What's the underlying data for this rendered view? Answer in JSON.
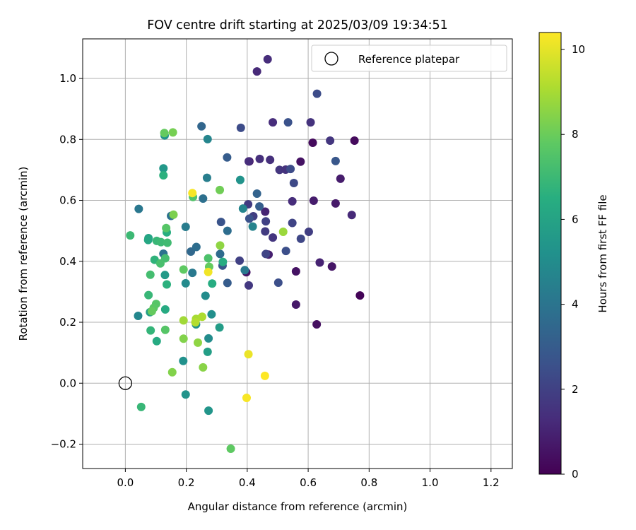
{
  "chart_data": {
    "type": "scatter",
    "title": "FOV centre drift starting at 2025/03/09 19:34:51",
    "xlabel": "Angular distance from reference (arcmin)",
    "ylabel": "Rotation from reference (arcmin)",
    "xlim": [
      -0.14,
      1.27
    ],
    "ylim": [
      -0.28,
      1.13
    ],
    "xticks": [
      0.0,
      0.2,
      0.4,
      0.6,
      0.8,
      1.0,
      1.2
    ],
    "xtick_labels": [
      "0.0",
      "0.2",
      "0.4",
      "0.6",
      "0.8",
      "1.0",
      "1.2"
    ],
    "yticks": [
      -0.2,
      0.0,
      0.2,
      0.4,
      0.6,
      0.8,
      1.0
    ],
    "ytick_labels": [
      "−0.2",
      "0.0",
      "0.2",
      "0.4",
      "0.6",
      "0.8",
      "1.0"
    ],
    "grid": true,
    "legend": {
      "location": "upper-right",
      "entries": [
        "Reference platepar"
      ]
    },
    "reference_point": {
      "label": "Reference platepar",
      "x": 0.0,
      "y": 0.0
    },
    "colorbar": {
      "label": "Hours from first FF file",
      "colormap": "viridis",
      "range": [
        0,
        10.4
      ],
      "ticks": [
        0,
        2,
        4,
        6,
        8,
        10
      ],
      "tick_labels": [
        "0",
        "2",
        "4",
        "6",
        "8",
        "10"
      ]
    },
    "points": [
      [
        0.615,
        0.789,
        0.3
      ],
      [
        0.752,
        0.796,
        0.3
      ],
      [
        0.77,
        0.288,
        0.1
      ],
      [
        0.628,
        0.193,
        0.4
      ],
      [
        0.678,
        0.383,
        0.6
      ],
      [
        0.56,
        0.367,
        0.5
      ],
      [
        0.56,
        0.258,
        0.7
      ],
      [
        0.407,
        0.728,
        0.4
      ],
      [
        0.575,
        0.727,
        0.5
      ],
      [
        0.397,
        0.364,
        0.6
      ],
      [
        0.69,
        0.59,
        0.7
      ],
      [
        0.706,
        0.671,
        0.8
      ],
      [
        0.618,
        0.599,
        0.8
      ],
      [
        0.47,
        0.422,
        0.9
      ],
      [
        0.638,
        0.396,
        1.0
      ],
      [
        0.459,
        0.563,
        1.0
      ],
      [
        0.432,
        1.023,
        1.2
      ],
      [
        0.467,
        1.063,
        1.3
      ],
      [
        0.484,
        0.856,
        1.3
      ],
      [
        0.475,
        0.733,
        1.4
      ],
      [
        0.405,
        0.728,
        1.3
      ],
      [
        0.441,
        0.736,
        1.4
      ],
      [
        0.743,
        0.552,
        1.2
      ],
      [
        0.548,
        0.597,
        1.3
      ],
      [
        0.608,
        0.856,
        1.5
      ],
      [
        0.672,
        0.796,
        1.6
      ],
      [
        0.506,
        0.7,
        1.6
      ],
      [
        0.526,
        0.701,
        1.5
      ],
      [
        0.405,
        0.321,
        1.7
      ],
      [
        0.484,
        0.478,
        1.6
      ],
      [
        0.459,
        0.498,
        1.8
      ],
      [
        0.403,
        0.587,
        1.8
      ],
      [
        0.42,
        0.548,
        1.9
      ],
      [
        0.375,
        0.402,
        2.0
      ],
      [
        0.461,
        0.531,
        2.0
      ],
      [
        0.548,
        0.526,
        2.1
      ],
      [
        0.602,
        0.497,
        1.9
      ],
      [
        0.461,
        0.424,
        2.1
      ],
      [
        0.576,
        0.474,
        2.2
      ],
      [
        0.542,
        0.703,
        2.4
      ],
      [
        0.553,
        0.657,
        2.3
      ],
      [
        0.502,
        0.33,
        2.5
      ],
      [
        0.527,
        0.434,
        2.5
      ],
      [
        0.534,
        0.856,
        2.6
      ],
      [
        0.629,
        0.95,
        2.4
      ],
      [
        0.69,
        0.729,
        2.8
      ],
      [
        0.379,
        0.838,
        2.4
      ],
      [
        0.407,
        0.54,
        2.6
      ],
      [
        0.314,
        0.529,
        2.7
      ],
      [
        0.319,
        0.386,
        2.8
      ],
      [
        0.335,
        0.329,
        3.0
      ],
      [
        0.334,
        0.741,
        3.0
      ],
      [
        0.44,
        0.58,
        3.1
      ],
      [
        0.432,
        0.622,
        3.3
      ],
      [
        0.25,
        0.843,
        3.4
      ],
      [
        0.215,
        0.432,
        3.5
      ],
      [
        0.233,
        0.447,
        3.7
      ],
      [
        0.311,
        0.424,
        3.6
      ],
      [
        0.335,
        0.5,
        3.7
      ],
      [
        0.255,
        0.606,
        3.8
      ],
      [
        0.15,
        0.549,
        3.9
      ],
      [
        0.125,
        0.425,
        3.9
      ],
      [
        0.044,
        0.572,
        4.1
      ],
      [
        0.392,
        0.371,
        4.2
      ],
      [
        0.22,
        0.362,
        4.2
      ],
      [
        0.198,
        0.513,
        4.3
      ],
      [
        0.268,
        0.674,
        4.4
      ],
      [
        0.418,
        0.514,
        4.6
      ],
      [
        0.27,
        0.801,
        4.7
      ],
      [
        0.386,
        0.573,
        4.7
      ],
      [
        0.042,
        0.221,
        4.8
      ],
      [
        0.198,
        0.328,
        4.9
      ],
      [
        0.273,
        0.147,
        5.0
      ],
      [
        0.263,
        0.287,
        5.0
      ],
      [
        0.283,
        0.226,
        5.1
      ],
      [
        0.232,
        0.193,
        5.2
      ],
      [
        0.19,
        0.073,
        5.2
      ],
      [
        0.198,
        -0.037,
        5.3
      ],
      [
        0.273,
        -0.09,
        5.4
      ],
      [
        0.129,
        0.813,
        5.4
      ],
      [
        0.125,
        0.705,
        5.5
      ],
      [
        0.377,
        0.667,
        5.3
      ],
      [
        0.13,
        0.355,
        5.6
      ],
      [
        0.309,
        0.183,
        5.7
      ],
      [
        0.27,
        0.103,
        5.8
      ],
      [
        0.081,
        0.233,
        5.8
      ],
      [
        0.076,
        0.476,
        6.0
      ],
      [
        0.075,
        0.47,
        6.2
      ],
      [
        0.131,
        0.242,
        6.3
      ],
      [
        0.103,
        0.138,
        6.3
      ],
      [
        0.32,
        0.398,
        6.4
      ],
      [
        0.285,
        0.327,
        6.4
      ],
      [
        0.136,
        0.495,
        6.5
      ],
      [
        0.136,
        0.324,
        6.6
      ],
      [
        0.096,
        0.405,
        6.7
      ],
      [
        0.083,
        0.173,
        6.8
      ],
      [
        0.076,
        0.289,
        6.9
      ],
      [
        0.125,
        0.682,
        6.6
      ],
      [
        0.052,
        -0.078,
        6.9
      ],
      [
        0.016,
        0.485,
        7.0
      ],
      [
        0.103,
        0.467,
        6.9
      ],
      [
        0.117,
        0.463,
        7.0
      ],
      [
        0.138,
        0.461,
        7.1
      ],
      [
        0.082,
        0.356,
        7.2
      ],
      [
        0.131,
        0.41,
        7.2
      ],
      [
        0.115,
        0.393,
        7.3
      ],
      [
        0.272,
        0.41,
        7.4
      ],
      [
        0.222,
        0.611,
        7.5
      ],
      [
        0.101,
        0.26,
        7.6
      ],
      [
        0.093,
        0.247,
        7.7
      ],
      [
        0.131,
        0.175,
        7.6
      ],
      [
        0.191,
        0.373,
        7.8
      ],
      [
        0.346,
        -0.215,
        7.8
      ],
      [
        0.134,
        0.509,
        7.6
      ],
      [
        0.087,
        0.236,
        7.9
      ],
      [
        0.275,
        0.382,
        7.9
      ],
      [
        0.128,
        0.821,
        7.9
      ],
      [
        0.31,
        0.634,
        8.1
      ],
      [
        0.156,
        0.823,
        8.2
      ],
      [
        0.158,
        0.553,
        8.3
      ],
      [
        0.191,
        0.146,
        8.4
      ],
      [
        0.154,
        0.036,
        8.4
      ],
      [
        0.255,
        0.052,
        8.5
      ],
      [
        0.238,
        0.133,
        8.6
      ],
      [
        0.311,
        0.452,
        8.6
      ],
      [
        0.518,
        0.497,
        8.8
      ],
      [
        0.191,
        0.206,
        8.9
      ],
      [
        0.232,
        0.211,
        9.0
      ],
      [
        0.252,
        0.218,
        9.1
      ],
      [
        0.23,
        0.2,
        9.2
      ],
      [
        0.272,
        0.365,
        10.2
      ],
      [
        0.22,
        0.624,
        10.3
      ],
      [
        0.404,
        0.095,
        10.1
      ],
      [
        0.398,
        -0.048,
        10.3
      ],
      [
        0.458,
        0.024,
        10.4
      ]
    ]
  }
}
